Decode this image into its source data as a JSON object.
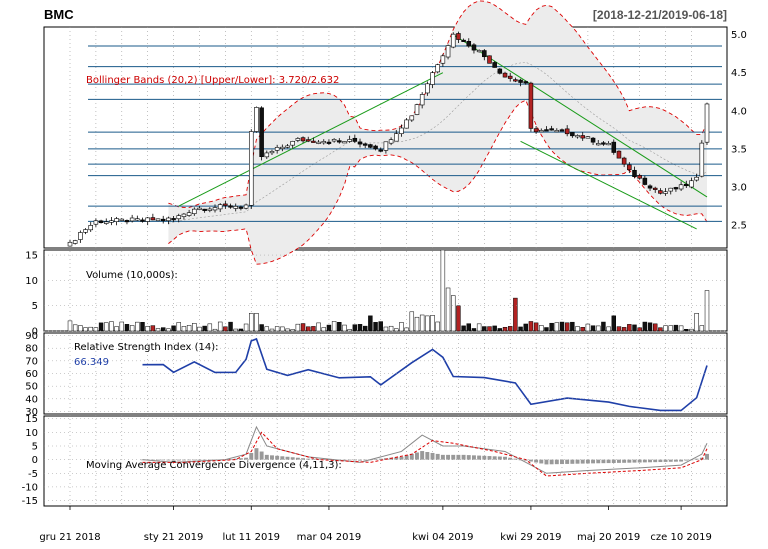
{
  "header": {
    "symbol": "BMC",
    "range": "[2018-12-21/2019-06-18]"
  },
  "x_axis": {
    "labels": [
      "gru 21 2018",
      "sty 21 2019",
      "lut 11 2019",
      "mar 04 2019",
      "kwi 04 2019",
      "kwi 29 2019",
      "maj 20 2019",
      "cze 10 2019"
    ],
    "label_index": [
      0,
      20,
      35,
      50,
      72,
      89,
      104,
      118
    ],
    "n_sessions": 124
  },
  "chart_data": [
    {
      "type": "candlestick",
      "panel": "price",
      "legend": "Bollinger Bands (20,2) [Upper/Lower]: 3.720/2.632",
      "ylim": [
        2.2,
        5.1
      ],
      "yticks": [
        2.5,
        3.0,
        3.5,
        4.0,
        4.5,
        5.0
      ],
      "colors": {
        "up": "#ffffff",
        "down": "#111111",
        "down_alt": "#b22222",
        "band": "#dd0000",
        "band_fill": "#ececec",
        "trend": "#1a9c1a",
        "support": "#1a5a8a"
      },
      "support_levels": [
        2.55,
        2.75,
        3.15,
        3.3,
        3.5,
        3.72,
        4.15,
        4.35,
        4.58,
        4.85
      ],
      "trend_lines": [
        {
          "from": [
            21,
            2.75
          ],
          "to": [
            72,
            4.5
          ]
        },
        {
          "from": [
            74,
            5.0
          ],
          "to": [
            123,
            2.87
          ]
        },
        {
          "from": [
            87,
            3.6
          ],
          "to": [
            121,
            2.45
          ]
        }
      ]
    },
    {
      "type": "bar",
      "panel": "volume",
      "legend": "Volume (10,000s):",
      "ylim": [
        0,
        16
      ],
      "yticks": [
        0,
        5,
        10,
        15
      ]
    },
    {
      "type": "line",
      "panel": "rsi",
      "legend": "Relative Strength Index (14):",
      "last_value": "66.349",
      "ylim": [
        28,
        92
      ],
      "yticks": [
        30,
        40,
        50,
        60,
        70,
        80,
        90
      ],
      "color": "#1f3fa8"
    },
    {
      "type": "line",
      "panel": "macd",
      "legend": "Moving Average Convergence Divergence (4,11,3):",
      "ylim": [
        -17,
        16
      ],
      "yticks": [
        -15,
        -10,
        -5,
        0,
        5,
        10,
        15
      ],
      "colors": {
        "macd": "#888888",
        "signal": "#dd0000",
        "hist": "#999999"
      }
    }
  ]
}
